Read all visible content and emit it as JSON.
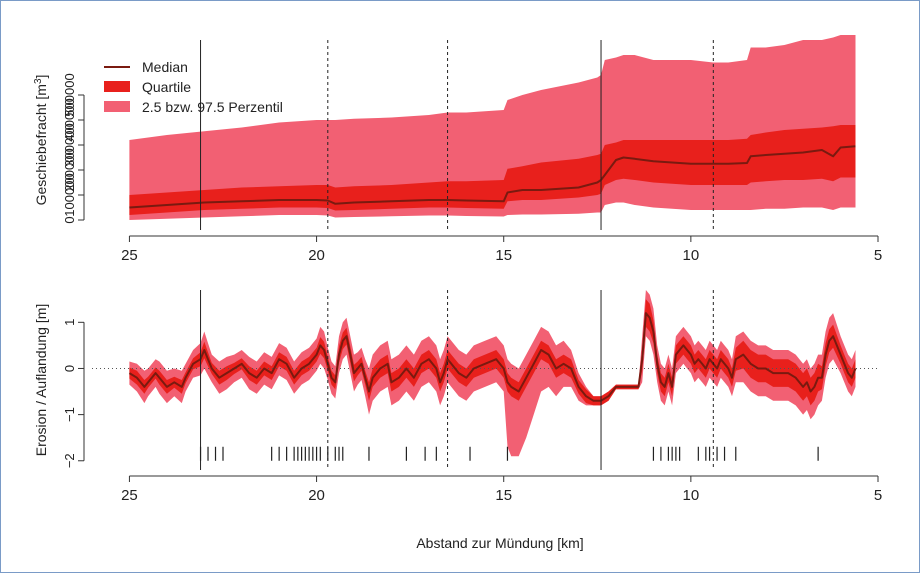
{
  "colors": {
    "median": "#7a1a10",
    "quartile": "#e8201c",
    "percentile": "#f26073",
    "axis": "#333333",
    "frame": "#7a9bc7"
  },
  "chart_data": [
    {
      "type": "area",
      "ylabel": "Geschiebefracht [m",
      "ylabel_sup": "3",
      "ylabel_end": "]",
      "xlim": [
        26,
        5
      ],
      "ylim": [
        -40000,
        720000
      ],
      "x_ticks": [
        "25",
        "20",
        "15",
        "10",
        "5"
      ],
      "y_ticks": [
        "0",
        "100000",
        "200000",
        "300000",
        "400000",
        "500000"
      ],
      "legend": {
        "position": "top-left",
        "entries": [
          "Median",
          "Quartile",
          "2.5 bzw. 97.5 Perzentil"
        ]
      },
      "solid_vlines": [
        23.1,
        12.4
      ],
      "dashed_vlines": [
        19.7,
        16.5,
        9.4
      ],
      "x": [
        25,
        24,
        23,
        22,
        21,
        20,
        19.7,
        19.5,
        19,
        18,
        17,
        16.5,
        16,
        15,
        14.9,
        14.5,
        14,
        13,
        12.5,
        12.4,
        12.3,
        12.0,
        11.8,
        11.5,
        11,
        10.5,
        10,
        9.4,
        9,
        8.5,
        8.4,
        8,
        7.5,
        7,
        6.5,
        6.2,
        6,
        5.6
      ],
      "series": [
        {
          "role": "p97",
          "values": [
            320000,
            340000,
            355000,
            370000,
            390000,
            400000,
            400000,
            400000,
            405000,
            410000,
            420000,
            430000,
            430000,
            440000,
            480000,
            500000,
            520000,
            550000,
            570000,
            580000,
            640000,
            650000,
            660000,
            660000,
            640000,
            640000,
            640000,
            630000,
            630000,
            640000,
            690000,
            690000,
            700000,
            720000,
            720000,
            730000,
            740000,
            740000
          ]
        },
        {
          "role": "q75",
          "values": [
            100000,
            110000,
            120000,
            130000,
            135000,
            140000,
            140000,
            130000,
            135000,
            140000,
            150000,
            155000,
            155000,
            160000,
            205000,
            215000,
            230000,
            245000,
            260000,
            265000,
            300000,
            310000,
            320000,
            320000,
            320000,
            320000,
            320000,
            320000,
            320000,
            325000,
            340000,
            350000,
            360000,
            365000,
            370000,
            375000,
            380000,
            380000
          ]
        },
        {
          "role": "median",
          "values": [
            50000,
            60000,
            70000,
            75000,
            80000,
            80000,
            78000,
            65000,
            70000,
            75000,
            80000,
            80000,
            78000,
            75000,
            110000,
            120000,
            120000,
            130000,
            150000,
            160000,
            180000,
            240000,
            250000,
            245000,
            235000,
            230000,
            225000,
            225000,
            225000,
            228000,
            255000,
            260000,
            265000,
            270000,
            280000,
            255000,
            290000,
            295000
          ]
        },
        {
          "role": "q25",
          "values": [
            20000,
            30000,
            40000,
            45000,
            50000,
            50000,
            48000,
            38000,
            40000,
            45000,
            50000,
            50000,
            48000,
            45000,
            75000,
            80000,
            80000,
            90000,
            100000,
            105000,
            140000,
            160000,
            165000,
            160000,
            150000,
            145000,
            140000,
            140000,
            140000,
            140000,
            150000,
            155000,
            160000,
            160000,
            165000,
            155000,
            170000,
            170000
          ]
        },
        {
          "role": "p2.5",
          "values": [
            0,
            5000,
            10000,
            15000,
            20000,
            20000,
            18000,
            10000,
            12000,
            15000,
            18000,
            18000,
            16000,
            14000,
            20000,
            22000,
            22000,
            25000,
            30000,
            30000,
            60000,
            70000,
            70000,
            60000,
            50000,
            45000,
            40000,
            40000,
            40000,
            40000,
            40000,
            45000,
            45000,
            50000,
            50000,
            40000,
            50000,
            50000
          ]
        }
      ]
    },
    {
      "type": "area",
      "ylabel": "Erosion / Auflandung [m]",
      "xlabel": "Abstand zur Mündung [km]",
      "xlim": [
        26,
        5
      ],
      "ylim": [
        -2.2,
        1.7
      ],
      "x_ticks": [
        "25",
        "20",
        "15",
        "10",
        "5"
      ],
      "y_ticks": [
        "−2",
        "−1",
        "0",
        "1"
      ],
      "solid_vlines": [
        23.1,
        12.4
      ],
      "dashed_vlines": [
        19.7,
        16.5,
        9.4
      ],
      "zero_line": true,
      "rug": [
        23.1,
        22.9,
        22.7,
        22.5,
        21.2,
        21.0,
        20.8,
        20.6,
        20.5,
        20.4,
        20.3,
        20.2,
        20.1,
        20.0,
        19.9,
        19.7,
        19.5,
        19.4,
        19.3,
        18.6,
        17.6,
        17.1,
        16.8,
        15.9,
        14.9,
        11.0,
        10.8,
        10.6,
        10.5,
        10.4,
        10.3,
        9.8,
        9.6,
        9.5,
        9.3,
        9.1,
        8.8,
        6.6
      ],
      "x": [
        25.0,
        24.8,
        24.6,
        24.5,
        24.3,
        24.2,
        24.0,
        23.8,
        23.6,
        23.5,
        23.3,
        23.1,
        23.0,
        22.9,
        22.8,
        22.6,
        22.4,
        22.2,
        22.0,
        21.8,
        21.6,
        21.4,
        21.2,
        21.0,
        20.8,
        20.6,
        20.4,
        20.2,
        20.0,
        19.9,
        19.8,
        19.7,
        19.6,
        19.5,
        19.4,
        19.3,
        19.2,
        19.1,
        19.0,
        18.9,
        18.8,
        18.7,
        18.6,
        18.5,
        18.3,
        18.1,
        18.0,
        17.8,
        17.6,
        17.4,
        17.2,
        17.0,
        16.8,
        16.7,
        16.6,
        16.5,
        16.4,
        16.2,
        16.0,
        15.8,
        15.5,
        15.2,
        15.0,
        14.9,
        14.8,
        14.6,
        14.4,
        14.2,
        14.0,
        13.8,
        13.6,
        13.4,
        13.2,
        13.0,
        12.8,
        12.6,
        12.4,
        12.2,
        12.0,
        11.8,
        11.6,
        11.5,
        11.4,
        11.3,
        11.2,
        11.1,
        11.0,
        10.9,
        10.8,
        10.7,
        10.6,
        10.5,
        10.4,
        10.3,
        10.2,
        10.1,
        10.0,
        9.9,
        9.8,
        9.7,
        9.6,
        9.5,
        9.4,
        9.3,
        9.2,
        9.1,
        9.0,
        8.9,
        8.8,
        8.6,
        8.4,
        8.2,
        8.0,
        7.8,
        7.6,
        7.4,
        7.2,
        7.0,
        6.9,
        6.8,
        6.7,
        6.6,
        6.5,
        6.4,
        6.3,
        6.2,
        6.0,
        5.9,
        5.8,
        5.7,
        5.6
      ],
      "series": [
        {
          "role": "median",
          "values": [
            -0.1,
            -0.2,
            -0.4,
            -0.3,
            -0.1,
            -0.2,
            -0.4,
            -0.3,
            -0.4,
            -0.2,
            0.1,
            0.2,
            0.4,
            0.2,
            0.0,
            -0.2,
            -0.1,
            0.0,
            0.1,
            -0.1,
            -0.2,
            0.0,
            -0.1,
            0.2,
            0.1,
            -0.2,
            0.0,
            0.1,
            0.3,
            0.5,
            0.4,
            0.1,
            -0.2,
            -0.3,
            0.3,
            0.6,
            0.7,
            0.3,
            -0.1,
            0.0,
            0.1,
            -0.2,
            -0.5,
            -0.2,
            0.0,
            0.1,
            -0.3,
            -0.2,
            0.0,
            -0.2,
            0.1,
            0.2,
            0.0,
            -0.3,
            -0.1,
            0.2,
            0.1,
            -0.1,
            -0.2,
            0.0,
            0.1,
            0.2,
            0.0,
            -0.3,
            -0.4,
            -0.5,
            -0.2,
            0.1,
            0.4,
            0.3,
            0.0,
            0.1,
            0.0,
            -0.4,
            -0.6,
            -0.7,
            -0.7,
            -0.6,
            -0.4,
            -0.4,
            -0.4,
            -0.4,
            -0.4,
            0.2,
            1.2,
            1.1,
            0.8,
            0.1,
            -0.3,
            -0.4,
            -0.1,
            -0.4,
            0.3,
            0.4,
            0.5,
            0.4,
            0.3,
            0.1,
            0.2,
            0.1,
            0.0,
            0.2,
            0.1,
            0.0,
            0.2,
            0.1,
            0.0,
            -0.2,
            0.2,
            0.3,
            0.1,
            0.0,
            0.0,
            -0.1,
            -0.1,
            -0.1,
            -0.2,
            -0.4,
            -0.3,
            -0.5,
            -0.4,
            -0.2,
            -0.2,
            0.3,
            0.6,
            0.7,
            0.3,
            0.1,
            -0.1,
            -0.2,
            0.0
          ]
        },
        {
          "role": "spread",
          "values": [
            0.12,
            0.15,
            0.15,
            0.12,
            0.12,
            0.15,
            0.15,
            0.12,
            0.15,
            0.12,
            0.12,
            0.15,
            0.18,
            0.15,
            0.12,
            0.15,
            0.15,
            0.12,
            0.12,
            0.15,
            0.15,
            0.15,
            0.15,
            0.15,
            0.15,
            0.15,
            0.15,
            0.15,
            0.15,
            0.18,
            0.18,
            0.15,
            0.15,
            0.15,
            0.18,
            0.18,
            0.18,
            0.18,
            0.18,
            0.15,
            0.15,
            0.15,
            0.2,
            0.2,
            0.2,
            0.2,
            0.2,
            0.2,
            0.2,
            0.2,
            0.2,
            0.2,
            0.2,
            0.2,
            0.2,
            0.2,
            0.2,
            0.2,
            0.2,
            0.2,
            0.2,
            0.2,
            0.2,
            0.2,
            0.2,
            0.2,
            0.2,
            0.2,
            0.2,
            0.2,
            0.2,
            0.2,
            0.2,
            0.15,
            0.15,
            0.1,
            0.1,
            0.1,
            0.05,
            0.05,
            0.05,
            0.05,
            0.05,
            0.25,
            0.3,
            0.3,
            0.25,
            0.2,
            0.2,
            0.2,
            0.2,
            0.2,
            0.2,
            0.2,
            0.2,
            0.2,
            0.2,
            0.2,
            0.2,
            0.2,
            0.2,
            0.2,
            0.2,
            0.2,
            0.2,
            0.2,
            0.2,
            0.2,
            0.25,
            0.3,
            0.3,
            0.3,
            0.3,
            0.3,
            0.3,
            0.3,
            0.3,
            0.3,
            0.3,
            0.3,
            0.3,
            0.3,
            0.25,
            0.25,
            0.25,
            0.25,
            0.2,
            0.2,
            0.2,
            0.2,
            0.2
          ]
        },
        {
          "role": "outer_spread",
          "values": [
            0.25,
            0.3,
            0.35,
            0.3,
            0.3,
            0.35,
            0.35,
            0.3,
            0.35,
            0.3,
            0.3,
            0.35,
            0.4,
            0.35,
            0.3,
            0.35,
            0.35,
            0.3,
            0.3,
            0.35,
            0.35,
            0.35,
            0.35,
            0.35,
            0.35,
            0.35,
            0.35,
            0.35,
            0.35,
            0.4,
            0.4,
            0.35,
            0.35,
            0.35,
            0.4,
            0.4,
            0.4,
            0.4,
            0.4,
            0.35,
            0.35,
            0.4,
            0.5,
            0.5,
            0.5,
            0.5,
            0.5,
            0.5,
            0.5,
            0.5,
            0.5,
            0.5,
            0.5,
            0.5,
            0.5,
            0.5,
            0.5,
            0.5,
            0.5,
            0.5,
            0.5,
            0.5,
            0.5,
            1.4,
            1.5,
            1.4,
            1.3,
            1.1,
            0.9,
            0.7,
            0.6,
            0.5,
            0.4,
            0.3,
            0.2,
            0.1,
            0.1,
            0.1,
            0.05,
            0.05,
            0.05,
            0.05,
            0.05,
            0.5,
            0.5,
            0.5,
            0.5,
            0.4,
            0.4,
            0.4,
            0.4,
            0.4,
            0.4,
            0.4,
            0.4,
            0.4,
            0.4,
            0.4,
            0.4,
            0.4,
            0.4,
            0.4,
            0.4,
            0.4,
            0.4,
            0.4,
            0.4,
            0.4,
            0.5,
            0.6,
            0.6,
            0.6,
            0.6,
            0.6,
            0.6,
            0.6,
            0.6,
            0.6,
            0.6,
            0.6,
            0.6,
            0.6,
            0.5,
            0.5,
            0.5,
            0.5,
            0.4,
            0.4,
            0.4,
            0.4,
            0.4
          ]
        }
      ]
    }
  ]
}
